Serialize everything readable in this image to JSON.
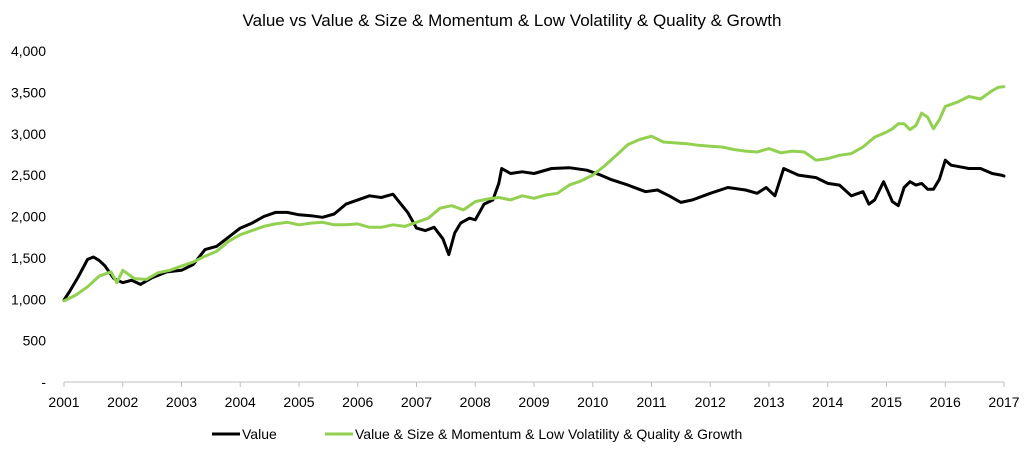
{
  "chart_data": {
    "type": "line",
    "title": "Value vs Value & Size & Momentum & Low Volatility & Quality & Growth",
    "xlabel": "",
    "ylabel": "",
    "x_ticks": [
      "2001",
      "2002",
      "2003",
      "2004",
      "2005",
      "2006",
      "2007",
      "2008",
      "2009",
      "2010",
      "2011",
      "2012",
      "2013",
      "2014",
      "2015",
      "2016",
      "2017"
    ],
    "xlim": [
      2001,
      2017
    ],
    "y_ticks": [
      {
        "value": 0,
        "label": "-"
      },
      {
        "value": 500,
        "label": "500"
      },
      {
        "value": 1000,
        "label": "1,000"
      },
      {
        "value": 1500,
        "label": "1,500"
      },
      {
        "value": 2000,
        "label": "2,000"
      },
      {
        "value": 2500,
        "label": "2,500"
      },
      {
        "value": 3000,
        "label": "3,000"
      },
      {
        "value": 3500,
        "label": "3,500"
      },
      {
        "value": 4000,
        "label": "4,000"
      }
    ],
    "ylim": [
      0,
      4000
    ],
    "grid": false,
    "legend_position": "bottom",
    "series": [
      {
        "name": "Value",
        "color": "#000000",
        "x": [
          2001.0,
          2001.1,
          2001.25,
          2001.4,
          2001.5,
          2001.6,
          2001.7,
          2001.85,
          2002.0,
          2002.15,
          2002.3,
          2002.5,
          2002.75,
          2003.0,
          2003.2,
          2003.4,
          2003.6,
          2003.8,
          2004.0,
          2004.2,
          2004.4,
          2004.6,
          2004.8,
          2005.0,
          2005.2,
          2005.4,
          2005.6,
          2005.8,
          2006.0,
          2006.2,
          2006.4,
          2006.5,
          2006.6,
          2006.7,
          2006.85,
          2007.0,
          2007.15,
          2007.3,
          2007.45,
          2007.55,
          2007.65,
          2007.75,
          2007.9,
          2008.0,
          2008.15,
          2008.3,
          2008.4,
          2008.45,
          2008.6,
          2008.8,
          2009.0,
          2009.3,
          2009.6,
          2009.9,
          2010.1,
          2010.3,
          2010.6,
          2010.9,
          2011.1,
          2011.3,
          2011.5,
          2011.7,
          2012.0,
          2012.3,
          2012.6,
          2012.8,
          2012.95,
          2013.1,
          2013.25,
          2013.5,
          2013.8,
          2014.0,
          2014.2,
          2014.4,
          2014.6,
          2014.7,
          2014.8,
          2014.95,
          2015.1,
          2015.2,
          2015.3,
          2015.4,
          2015.5,
          2015.6,
          2015.7,
          2015.8,
          2015.9,
          2016.0,
          2016.1,
          2016.25,
          2016.4,
          2016.6,
          2016.8,
          2016.95,
          2017.0
        ],
        "values": [
          990,
          1100,
          1280,
          1480,
          1510,
          1470,
          1400,
          1250,
          1200,
          1230,
          1180,
          1260,
          1330,
          1350,
          1420,
          1600,
          1640,
          1750,
          1860,
          1920,
          2000,
          2050,
          2050,
          2020,
          2010,
          1990,
          2030,
          2150,
          2200,
          2250,
          2230,
          2250,
          2270,
          2180,
          2050,
          1860,
          1830,
          1870,
          1730,
          1540,
          1800,
          1920,
          1980,
          1960,
          2150,
          2200,
          2400,
          2580,
          2520,
          2540,
          2520,
          2580,
          2590,
          2560,
          2510,
          2450,
          2380,
          2300,
          2320,
          2250,
          2170,
          2200,
          2280,
          2350,
          2320,
          2280,
          2350,
          2250,
          2580,
          2500,
          2470,
          2400,
          2380,
          2250,
          2300,
          2150,
          2200,
          2420,
          2180,
          2130,
          2350,
          2420,
          2380,
          2400,
          2330,
          2330,
          2450,
          2680,
          2620,
          2600,
          2580,
          2580,
          2520,
          2500,
          2490
        ]
      },
      {
        "name": "Value & Size & Momentum & Low Volatility & Quality & Growth",
        "color": "#92d050",
        "x": [
          2001.0,
          2001.2,
          2001.4,
          2001.6,
          2001.8,
          2001.9,
          2002.0,
          2002.2,
          2002.4,
          2002.6,
          2002.8,
          2003.0,
          2003.2,
          2003.4,
          2003.6,
          2003.8,
          2004.0,
          2004.2,
          2004.4,
          2004.6,
          2004.8,
          2005.0,
          2005.2,
          2005.4,
          2005.6,
          2005.8,
          2006.0,
          2006.2,
          2006.4,
          2006.6,
          2006.8,
          2007.0,
          2007.2,
          2007.4,
          2007.6,
          2007.8,
          2008.0,
          2008.2,
          2008.4,
          2008.6,
          2008.8,
          2009.0,
          2009.2,
          2009.4,
          2009.6,
          2009.8,
          2010.0,
          2010.2,
          2010.4,
          2010.6,
          2010.8,
          2011.0,
          2011.2,
          2011.4,
          2011.6,
          2011.8,
          2012.0,
          2012.2,
          2012.4,
          2012.6,
          2012.8,
          2013.0,
          2013.2,
          2013.4,
          2013.6,
          2013.8,
          2014.0,
          2014.2,
          2014.4,
          2014.6,
          2014.8,
          2015.0,
          2015.1,
          2015.2,
          2015.3,
          2015.4,
          2015.5,
          2015.6,
          2015.7,
          2015.8,
          2015.9,
          2016.0,
          2016.2,
          2016.4,
          2016.6,
          2016.8,
          2016.9,
          2017.0
        ],
        "values": [
          980,
          1050,
          1150,
          1280,
          1330,
          1200,
          1350,
          1250,
          1240,
          1320,
          1350,
          1400,
          1450,
          1520,
          1580,
          1700,
          1780,
          1830,
          1880,
          1910,
          1930,
          1900,
          1920,
          1930,
          1900,
          1900,
          1910,
          1870,
          1870,
          1900,
          1880,
          1930,
          1980,
          2100,
          2130,
          2080,
          2180,
          2210,
          2230,
          2200,
          2250,
          2220,
          2260,
          2280,
          2380,
          2430,
          2500,
          2610,
          2740,
          2870,
          2930,
          2970,
          2900,
          2890,
          2880,
          2860,
          2850,
          2840,
          2810,
          2790,
          2780,
          2820,
          2770,
          2790,
          2780,
          2680,
          2700,
          2740,
          2760,
          2840,
          2960,
          3020,
          3060,
          3120,
          3120,
          3050,
          3100,
          3250,
          3200,
          3060,
          3170,
          3330,
          3380,
          3450,
          3420,
          3520,
          3560,
          3570
        ]
      }
    ]
  }
}
